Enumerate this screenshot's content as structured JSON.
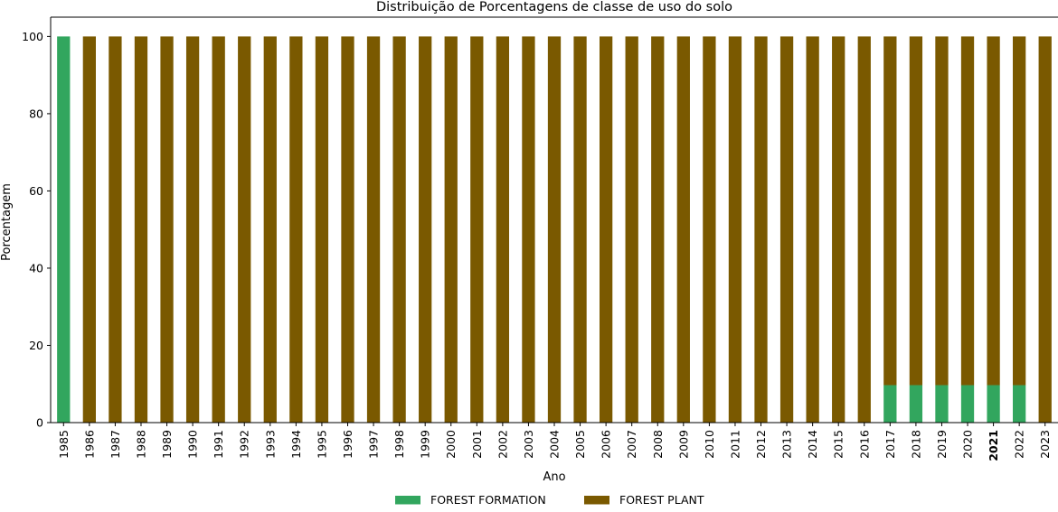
{
  "chart_data": {
    "type": "bar",
    "stacked": true,
    "title": "Distribuição de Porcentagens de classe de uso do solo",
    "xlabel": "Ano",
    "ylabel": "Porcentagem",
    "ylim": [
      0,
      105
    ],
    "yticks": [
      0,
      20,
      40,
      60,
      80,
      100
    ],
    "grid": false,
    "legend_position": "bottom-center",
    "bold_category": "2021",
    "categories": [
      "1985",
      "1986",
      "1987",
      "1988",
      "1989",
      "1990",
      "1991",
      "1992",
      "1993",
      "1994",
      "1995",
      "1996",
      "1997",
      "1998",
      "1999",
      "2000",
      "2001",
      "2002",
      "2003",
      "2004",
      "2005",
      "2006",
      "2007",
      "2008",
      "2009",
      "2010",
      "2011",
      "2012",
      "2013",
      "2014",
      "2015",
      "2016",
      "2017",
      "2018",
      "2019",
      "2020",
      "2021",
      "2022",
      "2023"
    ],
    "series": [
      {
        "name": "FOREST FORMATION",
        "color": "#32a65e",
        "values": [
          100,
          0,
          0,
          0,
          0,
          0,
          0,
          0,
          0,
          0,
          0,
          0,
          0,
          0,
          0,
          0,
          0,
          0,
          0,
          0,
          0,
          0,
          0,
          0,
          0,
          0,
          0,
          0,
          0,
          0,
          0,
          0,
          9.7,
          9.7,
          9.7,
          9.7,
          9.7,
          9.7,
          0
        ]
      },
      {
        "name": "FOREST PLANT",
        "color": "#7a5900",
        "values": [
          0,
          100,
          100,
          100,
          100,
          100,
          100,
          100,
          100,
          100,
          100,
          100,
          100,
          100,
          100,
          100,
          100,
          100,
          100,
          100,
          100,
          100,
          100,
          100,
          100,
          100,
          100,
          100,
          100,
          100,
          100,
          100,
          90.3,
          90.3,
          90.3,
          90.3,
          90.3,
          90.3,
          100
        ]
      }
    ]
  }
}
